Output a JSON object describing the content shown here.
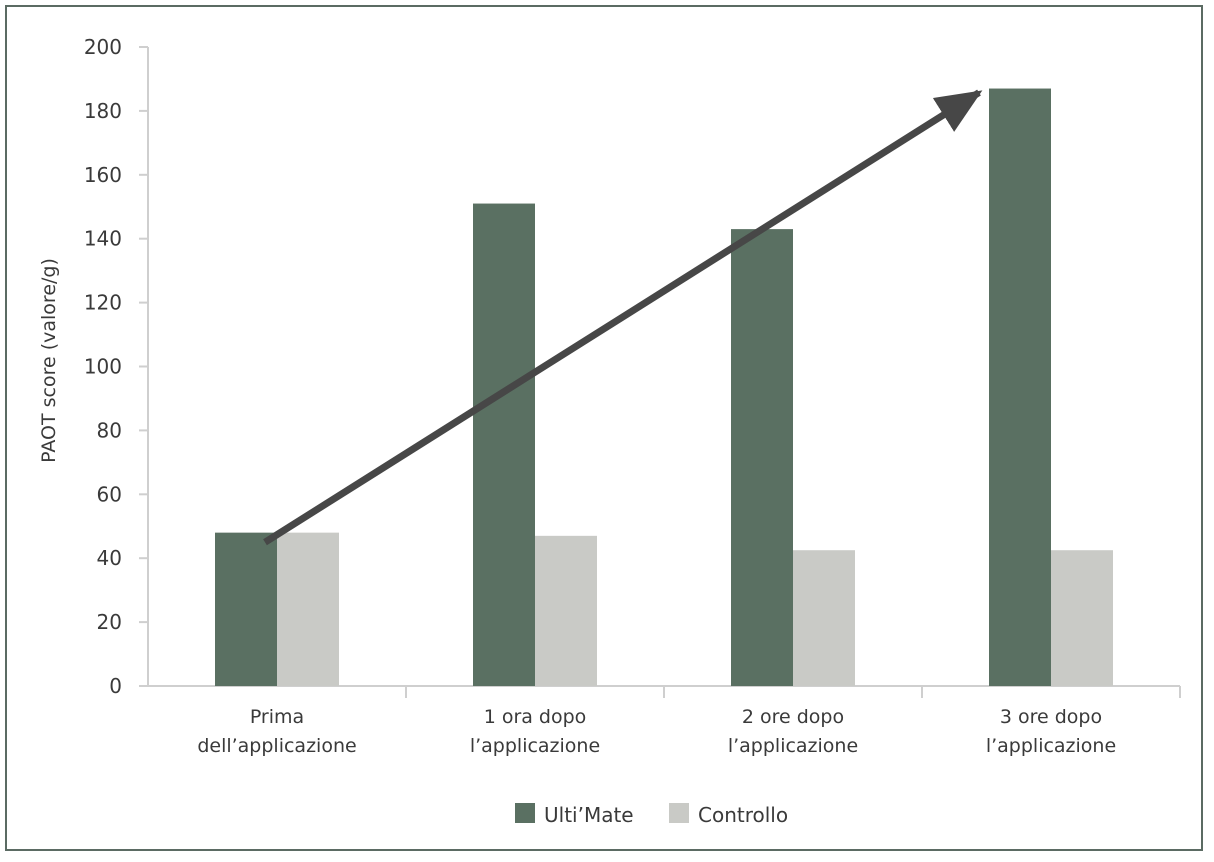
{
  "chart_data": {
    "type": "bar",
    "categories": [
      [
        "Prima",
        "dell’applicazione"
      ],
      [
        "1 ora dopo",
        "l’applicazione"
      ],
      [
        "2 ore dopo",
        "l’applicazione"
      ],
      [
        "3 ore dopo",
        "l’applicazione"
      ]
    ],
    "series": [
      {
        "name": "Ulti’Mate",
        "values": [
          48,
          151,
          143,
          187
        ],
        "color": "#5a7062"
      },
      {
        "name": "Controllo",
        "values": [
          48,
          47,
          42.5,
          42.5
        ],
        "color": "#c9cac6"
      }
    ],
    "ylabel": "PAOT score (valore/g)",
    "xlabel": "",
    "ylim": [
      0,
      200
    ],
    "yticks": [
      0,
      20,
      40,
      60,
      80,
      100,
      120,
      140,
      160,
      180,
      200
    ],
    "grid": false,
    "legend_position": "bottom-center",
    "trend_arrow": {
      "from": {
        "category": 0,
        "value": 50
      },
      "to": {
        "category": 3,
        "value": 187
      },
      "color": "#474747"
    },
    "frame_color": "#5b6b63"
  }
}
